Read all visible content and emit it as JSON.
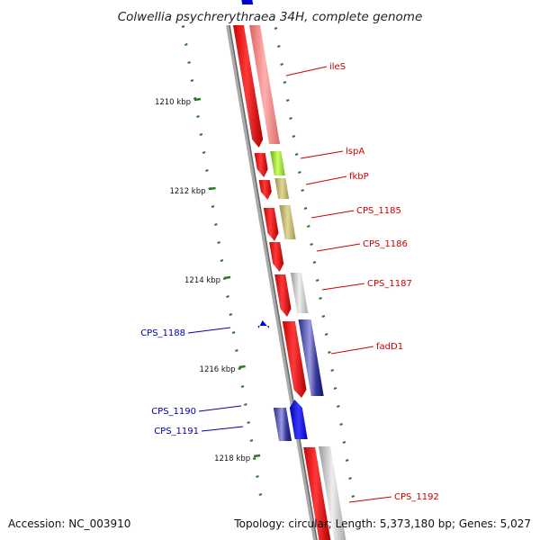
{
  "title": "Colwellia psychrerythraea 34H, complete genome",
  "footer": {
    "accession": "Accession: NC_003910",
    "summary": "Topology: circular; Length: 5,373,180 bp; Genes: 5,027"
  },
  "colors": {
    "plus_strand_label": "#cc0000",
    "minus_strand_label": "#0000aa",
    "backbone": "#888888",
    "tick": "#2a7a2a"
  },
  "scale_labels": [
    "1210 kbp",
    "1212 kbp",
    "1214 kbp",
    "1216 kbp",
    "1218 kbp"
  ],
  "genes": [
    {
      "name": "ileS",
      "strand": "plus",
      "category_color": "#f08080"
    },
    {
      "name": "lspA",
      "strand": "plus",
      "category_color": "#99dd33"
    },
    {
      "name": "fkbP",
      "strand": "plus",
      "category_color": "#bbb266"
    },
    {
      "name": "CPS_1185",
      "strand": "plus",
      "category_color": "#bbb266"
    },
    {
      "name": "CPS_1186",
      "strand": "plus",
      "category_color": ""
    },
    {
      "name": "CPS_1187",
      "strand": "plus",
      "category_color": "#bbbbbb"
    },
    {
      "name": "fadD1",
      "strand": "plus",
      "category_color": "#6666bb"
    },
    {
      "name": "CPS_1188",
      "strand": "minus",
      "category_color": ""
    },
    {
      "name": "CPS_1190",
      "strand": "minus",
      "category_color": "#6666bb"
    },
    {
      "name": "CPS_1191",
      "strand": "minus",
      "category_color": ""
    },
    {
      "name": "CPS_1192",
      "strand": "plus",
      "category_color": "#bbbbbb"
    }
  ]
}
